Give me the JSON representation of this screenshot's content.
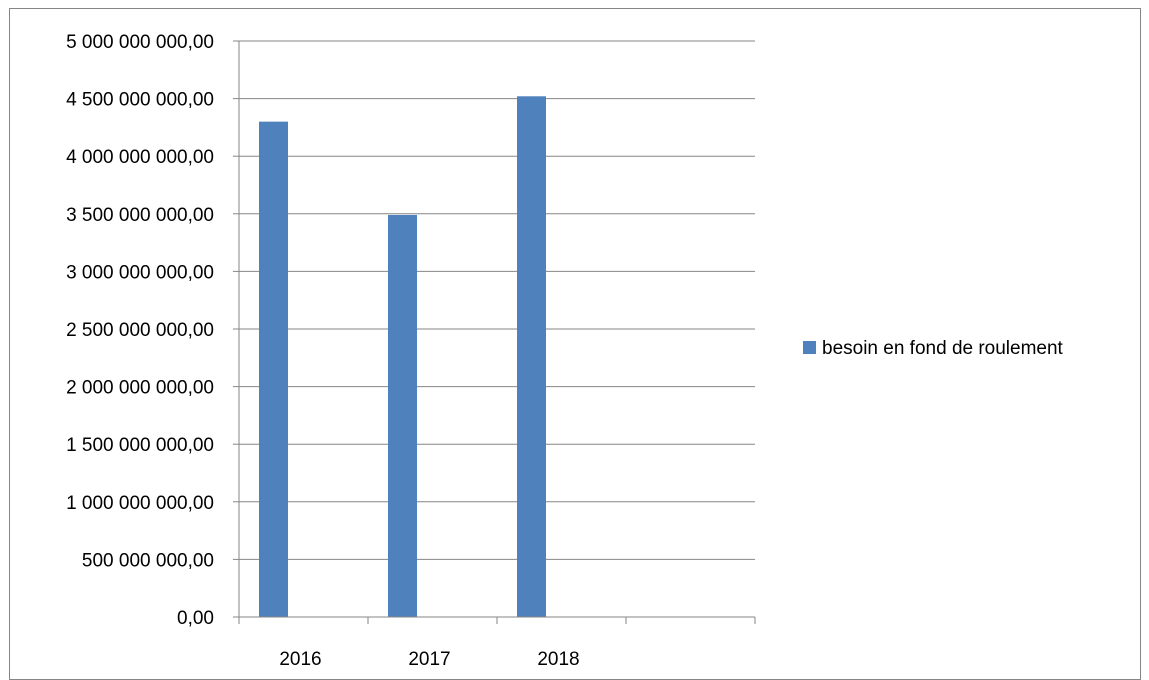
{
  "chart_data": {
    "type": "bar",
    "categories": [
      "2016",
      "2017",
      "2018",
      ""
    ],
    "series": [
      {
        "name": "besoin en fond de roulement",
        "values": [
          4300000000,
          3490000000,
          4520000000,
          null
        ],
        "color": "#4F81BD"
      }
    ],
    "ylim": [
      0,
      5000000000
    ],
    "yticks": [
      0,
      500000000,
      1000000000,
      1500000000,
      2000000000,
      2500000000,
      3000000000,
      3500000000,
      4000000000,
      4500000000,
      5000000000
    ],
    "ytick_labels": [
      "0,00",
      "500 000 000,00",
      "1 000 000 000,00",
      "1 500 000 000,00",
      "2 000 000 000,00",
      "2 500 000 000,00",
      "3 000 000 000,00",
      "3 500 000 000,00",
      "4 000 000 000,00",
      "4 500 000 000,00",
      "5 000 000 000,00"
    ],
    "grid": true,
    "legend_position": "right",
    "colors": {
      "bar": "#4F81BD",
      "grid": "#868686",
      "axis": "#868686",
      "frame": "#868686"
    }
  }
}
